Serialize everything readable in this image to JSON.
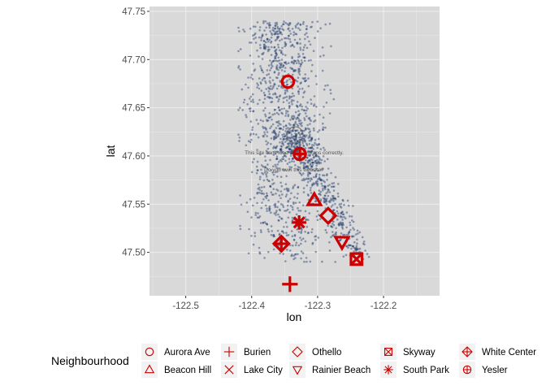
{
  "chart_data": {
    "type": "scatter",
    "title": "",
    "xlabel": "lon",
    "ylabel": "lat",
    "xlim": [
      -122.555,
      -122.115
    ],
    "ylim": [
      47.455,
      47.755
    ],
    "x_ticks": [
      -122.5,
      -122.4,
      -122.3,
      -122.2
    ],
    "x_tick_labels": [
      "-122.5",
      "-122.4",
      "-122.3",
      "-122.2"
    ],
    "y_ticks": [
      47.5,
      47.55,
      47.6,
      47.65,
      47.7,
      47.75
    ],
    "y_tick_labels": [
      "47.50",
      "47.55",
      "47.60",
      "47.65",
      "47.70",
      "47.75"
    ],
    "grid": true,
    "background": "#d9d9d9",
    "background_note": [
      "This site can't load Google Maps correctly.",
      "Do you own this website?"
    ],
    "point_color": "#1f3a6b",
    "marker_color": "#cc0000",
    "background_points_description": "dense cloud of small translucent points along the north-south corridor",
    "legend": {
      "title": "Neighbourhood",
      "position": "bottom"
    },
    "neighbourhoods": [
      {
        "name": "Aurora Ave",
        "shape": "circle",
        "lon": -122.345,
        "lat": 47.677
      },
      {
        "name": "Beacon Hill",
        "shape": "triangle-up",
        "lon": -122.305,
        "lat": 47.554
      },
      {
        "name": "Burien",
        "shape": "plus",
        "lon": -122.342,
        "lat": 47.467
      },
      {
        "name": "Lake City",
        "shape": "x",
        "lon": null,
        "lat": null
      },
      {
        "name": "Othello",
        "shape": "diamond",
        "lon": -122.284,
        "lat": 47.538
      },
      {
        "name": "Rainier Beach",
        "shape": "triangle-down",
        "lon": -122.263,
        "lat": 47.511
      },
      {
        "name": "Skyway",
        "shape": "square-x",
        "lon": -122.241,
        "lat": 47.493
      },
      {
        "name": "South Park",
        "shape": "asterisk",
        "lon": -122.328,
        "lat": 47.531
      },
      {
        "name": "White Center",
        "shape": "diamond-plus",
        "lon": -122.355,
        "lat": 47.509
      },
      {
        "name": "Yesler",
        "shape": "circle-plus",
        "lon": -122.327,
        "lat": 47.602
      }
    ]
  }
}
